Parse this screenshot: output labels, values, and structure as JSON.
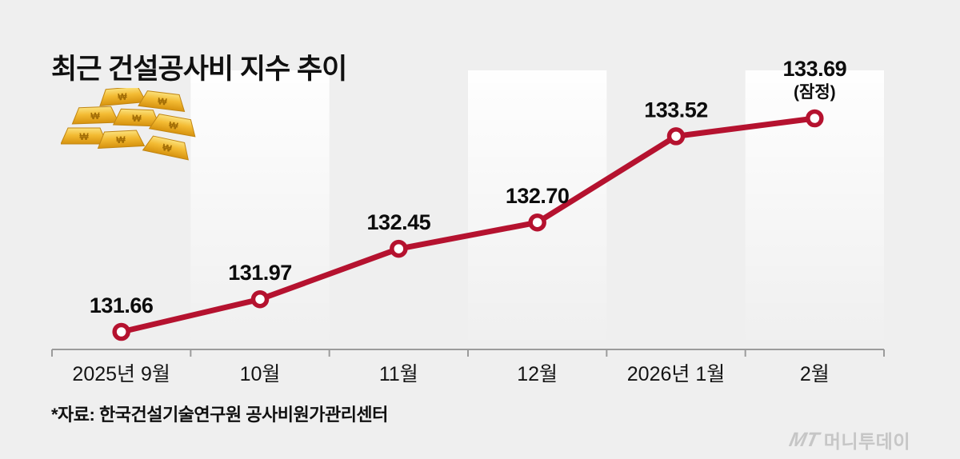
{
  "title": "최근 건설공사비 지수 추이",
  "source_note": "*자료:  한국건설기술연구원 공사비원가관리센터",
  "logo": {
    "mark": "MT",
    "name": "머니투데이"
  },
  "illustration": {
    "name": "gold-bars",
    "symbol": "₩"
  },
  "colors": {
    "background": "#efefef",
    "line": "#b5122f",
    "marker_fill": "#ffffff",
    "axis": "#9b9b9b",
    "text": "#0c0c0c",
    "logo_gray": "#c6c6c6"
  },
  "chart_data": {
    "type": "line",
    "title": "최근 건설공사비 지수 추이",
    "categories": [
      "2025년 9월",
      "10월",
      "11월",
      "12월",
      "2026년 1월",
      "2월"
    ],
    "values": [
      131.66,
      131.97,
      132.45,
      132.7,
      133.52,
      133.69
    ],
    "value_labels": [
      "131.66",
      "131.97",
      "132.45",
      "132.70",
      "133.52",
      "133.69"
    ],
    "last_value_note": "(잠정)",
    "xlabel": "",
    "ylabel": "",
    "ylim": [
      131.4,
      133.9
    ],
    "grid": false,
    "legend": false,
    "line_color": "#b5122f",
    "marker": "open-circle"
  }
}
